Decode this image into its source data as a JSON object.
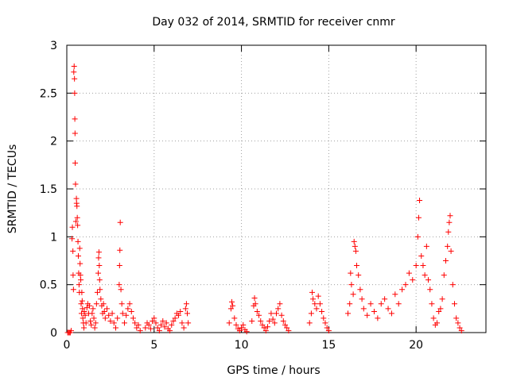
{
  "chart_data": {
    "type": "scatter",
    "title": "Day 032 of 2014, SRMTID for receiver cnmr",
    "xlabel": "GPS time / hours",
    "ylabel": "SRMTID / TECUs",
    "xlim": [
      0,
      24
    ],
    "ylim": [
      0,
      3
    ],
    "grid": true,
    "marker": "+",
    "color": "#ff0000",
    "xticks": [
      0,
      5,
      10,
      15,
      20
    ],
    "xtick_labels": [
      "0",
      "5",
      "10",
      "15",
      "20"
    ],
    "yticks": [
      0,
      0.5,
      1,
      1.5,
      2,
      2.5,
      3
    ],
    "ytick_labels": [
      "0",
      "0.5",
      "1",
      "1.5",
      "2",
      "2.5",
      "3"
    ],
    "series": [
      {
        "name": "SRMTID",
        "points": [
          [
            0.05,
            0.0
          ],
          [
            0.1,
            0.0
          ],
          [
            0.15,
            0.0
          ],
          [
            0.2,
            0.0
          ],
          [
            0.25,
            0.02
          ],
          [
            0.3,
            0.98
          ],
          [
            0.32,
            1.1
          ],
          [
            0.35,
            0.85
          ],
          [
            0.36,
            0.6
          ],
          [
            0.38,
            0.45
          ],
          [
            0.4,
            2.72
          ],
          [
            0.42,
            2.78
          ],
          [
            0.44,
            2.65
          ],
          [
            0.45,
            2.5
          ],
          [
            0.46,
            2.23
          ],
          [
            0.47,
            2.08
          ],
          [
            0.48,
            1.77
          ],
          [
            0.5,
            1.55
          ],
          [
            0.52,
            1.16
          ],
          [
            0.55,
            1.4
          ],
          [
            0.56,
            1.35
          ],
          [
            0.58,
            1.32
          ],
          [
            0.6,
            1.2
          ],
          [
            0.62,
            1.12
          ],
          [
            0.64,
            0.95
          ],
          [
            0.66,
            0.8
          ],
          [
            0.68,
            0.62
          ],
          [
            0.7,
            0.5
          ],
          [
            0.72,
            0.42
          ],
          [
            0.74,
            0.88
          ],
          [
            0.76,
            0.72
          ],
          [
            0.78,
            0.6
          ],
          [
            0.8,
            0.55
          ],
          [
            0.82,
            0.3
          ],
          [
            0.84,
            0.2
          ],
          [
            0.86,
            0.42
          ],
          [
            0.88,
            0.33
          ],
          [
            0.9,
            0.25
          ],
          [
            0.92,
            0.15
          ],
          [
            0.95,
            0.1
          ],
          [
            0.98,
            0.05
          ],
          [
            1.0,
            0.22
          ],
          [
            1.05,
            0.18
          ],
          [
            1.1,
            0.1
          ],
          [
            1.15,
            0.26
          ],
          [
            1.2,
            0.3
          ],
          [
            1.25,
            0.2
          ],
          [
            1.3,
            0.28
          ],
          [
            1.35,
            0.12
          ],
          [
            1.4,
            0.08
          ],
          [
            1.45,
            0.2
          ],
          [
            1.5,
            0.25
          ],
          [
            1.55,
            0.15
          ],
          [
            1.6,
            0.05
          ],
          [
            1.65,
            0.1
          ],
          [
            1.7,
            0.3
          ],
          [
            1.75,
            0.42
          ],
          [
            1.8,
            0.62
          ],
          [
            1.82,
            0.78
          ],
          [
            1.84,
            0.84
          ],
          [
            1.86,
            0.7
          ],
          [
            1.88,
            0.55
          ],
          [
            1.9,
            0.45
          ],
          [
            1.95,
            0.35
          ],
          [
            2.0,
            0.28
          ],
          [
            2.05,
            0.2
          ],
          [
            2.1,
            0.3
          ],
          [
            2.15,
            0.22
          ],
          [
            2.2,
            0.15
          ],
          [
            2.3,
            0.25
          ],
          [
            2.4,
            0.18
          ],
          [
            2.5,
            0.12
          ],
          [
            2.6,
            0.2
          ],
          [
            2.7,
            0.1
          ],
          [
            2.8,
            0.05
          ],
          [
            2.9,
            0.15
          ],
          [
            3.0,
            0.5
          ],
          [
            3.02,
            0.7
          ],
          [
            3.04,
            0.86
          ],
          [
            3.06,
            1.15
          ],
          [
            3.1,
            0.45
          ],
          [
            3.15,
            0.3
          ],
          [
            3.2,
            0.2
          ],
          [
            3.3,
            0.1
          ],
          [
            3.4,
            0.18
          ],
          [
            3.5,
            0.25
          ],
          [
            3.6,
            0.3
          ],
          [
            3.7,
            0.22
          ],
          [
            3.8,
            0.15
          ],
          [
            3.9,
            0.1
          ],
          [
            4.0,
            0.05
          ],
          [
            4.1,
            0.08
          ],
          [
            4.2,
            0.02
          ],
          [
            4.5,
            0.05
          ],
          [
            4.6,
            0.1
          ],
          [
            4.7,
            0.08
          ],
          [
            4.8,
            0.04
          ],
          [
            4.9,
            0.12
          ],
          [
            5.0,
            0.15
          ],
          [
            5.1,
            0.1
          ],
          [
            5.2,
            0.05
          ],
          [
            5.3,
            0.02
          ],
          [
            5.4,
            0.08
          ],
          [
            5.5,
            0.12
          ],
          [
            5.6,
            0.06
          ],
          [
            5.7,
            0.1
          ],
          [
            5.8,
            0.04
          ],
          [
            5.9,
            0.02
          ],
          [
            6.0,
            0.08
          ],
          [
            6.1,
            0.12
          ],
          [
            6.2,
            0.15
          ],
          [
            6.3,
            0.2
          ],
          [
            6.4,
            0.18
          ],
          [
            6.5,
            0.22
          ],
          [
            6.6,
            0.1
          ],
          [
            6.7,
            0.05
          ],
          [
            6.8,
            0.25
          ],
          [
            6.85,
            0.3
          ],
          [
            6.9,
            0.2
          ],
          [
            6.95,
            0.1
          ],
          [
            9.3,
            0.1
          ],
          [
            9.4,
            0.25
          ],
          [
            9.45,
            0.32
          ],
          [
            9.5,
            0.28
          ],
          [
            9.6,
            0.15
          ],
          [
            9.7,
            0.08
          ],
          [
            9.8,
            0.04
          ],
          [
            9.9,
            0.02
          ],
          [
            10.0,
            0.05
          ],
          [
            10.1,
            0.08
          ],
          [
            10.2,
            0.03
          ],
          [
            10.3,
            0.01
          ],
          [
            10.6,
            0.12
          ],
          [
            10.7,
            0.28
          ],
          [
            10.75,
            0.36
          ],
          [
            10.8,
            0.3
          ],
          [
            10.9,
            0.22
          ],
          [
            11.0,
            0.18
          ],
          [
            11.1,
            0.12
          ],
          [
            11.2,
            0.08
          ],
          [
            11.3,
            0.05
          ],
          [
            11.4,
            0.02
          ],
          [
            11.5,
            0.06
          ],
          [
            11.6,
            0.12
          ],
          [
            11.7,
            0.2
          ],
          [
            11.8,
            0.14
          ],
          [
            11.9,
            0.1
          ],
          [
            12.0,
            0.2
          ],
          [
            12.1,
            0.25
          ],
          [
            12.2,
            0.3
          ],
          [
            12.3,
            0.18
          ],
          [
            12.4,
            0.12
          ],
          [
            12.5,
            0.08
          ],
          [
            12.6,
            0.05
          ],
          [
            12.7,
            0.02
          ],
          [
            13.9,
            0.1
          ],
          [
            14.0,
            0.2
          ],
          [
            14.05,
            0.42
          ],
          [
            14.1,
            0.35
          ],
          [
            14.2,
            0.3
          ],
          [
            14.3,
            0.25
          ],
          [
            14.4,
            0.38
          ],
          [
            14.5,
            0.3
          ],
          [
            14.6,
            0.22
          ],
          [
            14.7,
            0.15
          ],
          [
            14.8,
            0.1
          ],
          [
            14.9,
            0.05
          ],
          [
            15.0,
            0.02
          ],
          [
            16.1,
            0.2
          ],
          [
            16.2,
            0.3
          ],
          [
            16.25,
            0.62
          ],
          [
            16.3,
            0.5
          ],
          [
            16.4,
            0.4
          ],
          [
            16.45,
            0.95
          ],
          [
            16.5,
            0.9
          ],
          [
            16.55,
            0.85
          ],
          [
            16.6,
            0.7
          ],
          [
            16.7,
            0.6
          ],
          [
            16.8,
            0.45
          ],
          [
            16.9,
            0.35
          ],
          [
            17.0,
            0.25
          ],
          [
            17.2,
            0.18
          ],
          [
            17.4,
            0.3
          ],
          [
            17.6,
            0.22
          ],
          [
            17.8,
            0.15
          ],
          [
            18.0,
            0.3
          ],
          [
            18.2,
            0.35
          ],
          [
            18.4,
            0.25
          ],
          [
            18.6,
            0.2
          ],
          [
            18.8,
            0.4
          ],
          [
            19.0,
            0.3
          ],
          [
            19.2,
            0.45
          ],
          [
            19.4,
            0.5
          ],
          [
            19.6,
            0.62
          ],
          [
            19.8,
            0.55
          ],
          [
            20.0,
            0.7
          ],
          [
            20.1,
            1.0
          ],
          [
            20.15,
            1.2
          ],
          [
            20.2,
            1.38
          ],
          [
            20.3,
            0.8
          ],
          [
            20.4,
            0.7
          ],
          [
            20.5,
            0.6
          ],
          [
            20.6,
            0.9
          ],
          [
            20.7,
            0.55
          ],
          [
            20.8,
            0.45
          ],
          [
            20.9,
            0.3
          ],
          [
            21.0,
            0.15
          ],
          [
            21.1,
            0.08
          ],
          [
            21.2,
            0.1
          ],
          [
            21.3,
            0.22
          ],
          [
            21.4,
            0.25
          ],
          [
            21.5,
            0.35
          ],
          [
            21.6,
            0.6
          ],
          [
            21.7,
            0.75
          ],
          [
            21.8,
            0.9
          ],
          [
            21.85,
            1.05
          ],
          [
            21.9,
            1.15
          ],
          [
            21.95,
            1.22
          ],
          [
            22.0,
            0.85
          ],
          [
            22.1,
            0.5
          ],
          [
            22.2,
            0.3
          ],
          [
            22.3,
            0.15
          ],
          [
            22.4,
            0.1
          ],
          [
            22.5,
            0.05
          ],
          [
            22.6,
            0.02
          ]
        ]
      }
    ]
  }
}
